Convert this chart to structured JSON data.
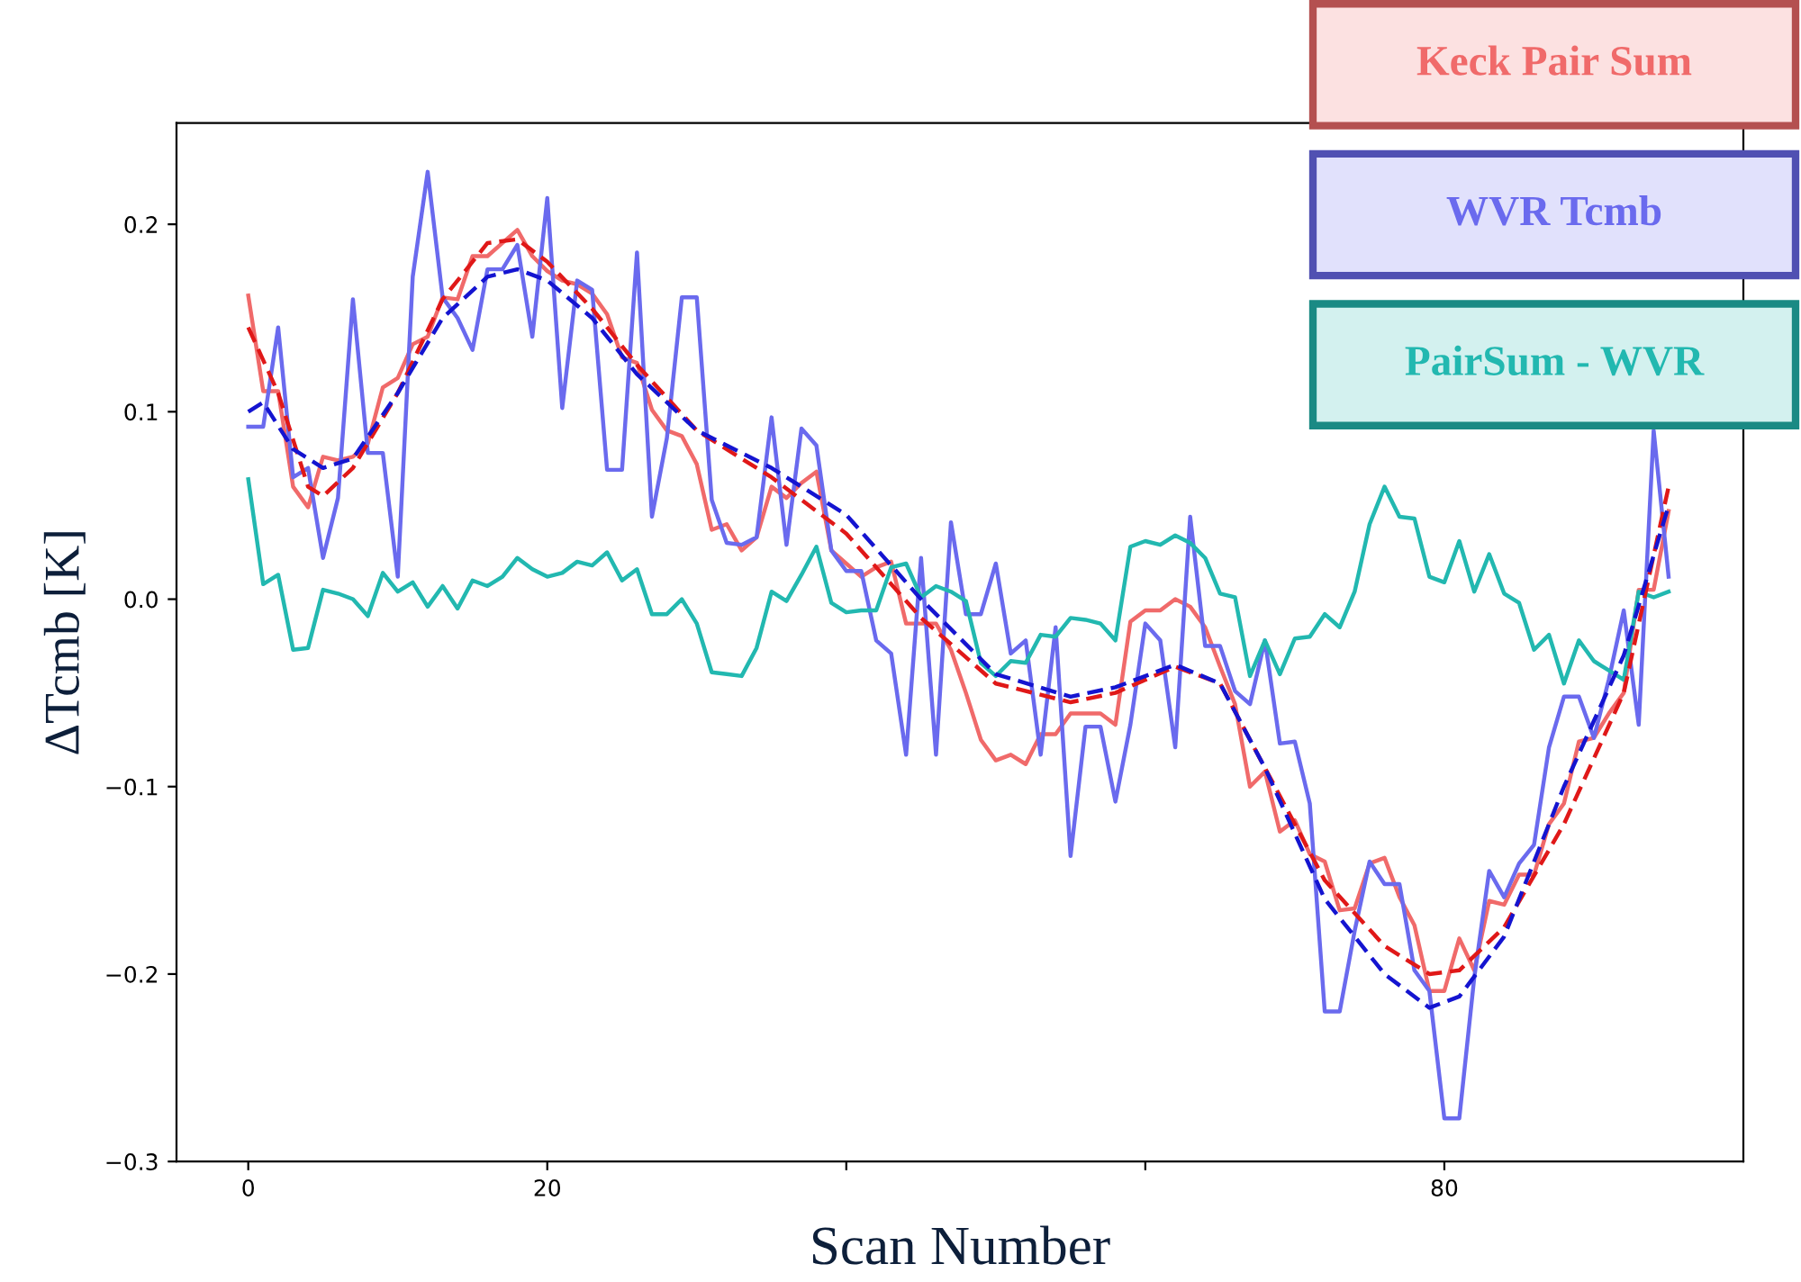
{
  "chart_data": {
    "type": "line",
    "xlabel": "Scan Number",
    "ylabel": "ΔTcmb [K]",
    "xlim": [
      -4.8,
      100
    ],
    "ylim": [
      -0.3,
      0.254
    ],
    "xticks": [
      0,
      20,
      {
        "value": 40,
        "label": null
      },
      {
        "value": 60,
        "label": null
      },
      80
    ],
    "yticks": [
      -0.3,
      -0.2,
      -0.1,
      {
        "value": 0,
        "label": "0.0"
      },
      0.1,
      0.2
    ],
    "grid": false,
    "legend": "top right",
    "marker": "none",
    "series": [
      {
        "name": "Keck Pair Sum",
        "color": "#f06a6a",
        "x": [
          0,
          1,
          2,
          3,
          4,
          5,
          6,
          7,
          8,
          9,
          10,
          11,
          12,
          13,
          14,
          15,
          16,
          17,
          18,
          19,
          20,
          21,
          22,
          23,
          24,
          25,
          26,
          27,
          28,
          29,
          30,
          31,
          32,
          33,
          34,
          35,
          36,
          37,
          38,
          39,
          40,
          41,
          42,
          43,
          44,
          45,
          46,
          47,
          48,
          49,
          50,
          51,
          52,
          53,
          54,
          55,
          56,
          57,
          58,
          59,
          60,
          61,
          62,
          63,
          64,
          65,
          66,
          67,
          68,
          69,
          70,
          71,
          72,
          73,
          74,
          75,
          76,
          77,
          78,
          79,
          80,
          81,
          82,
          83,
          84,
          85,
          86,
          87,
          88,
          89,
          90,
          91,
          92,
          93,
          94,
          95
        ],
        "values": [
          0.162,
          0.111,
          0.111,
          0.06,
          0.049,
          0.076,
          0.074,
          0.076,
          0.083,
          0.113,
          0.118,
          0.136,
          0.14,
          0.161,
          0.16,
          0.183,
          0.183,
          0.19,
          0.197,
          0.183,
          0.175,
          0.17,
          0.168,
          0.163,
          0.152,
          0.129,
          0.126,
          0.101,
          0.09,
          0.087,
          0.072,
          0.037,
          0.04,
          0.026,
          0.033,
          0.06,
          0.054,
          0.062,
          0.068,
          0.026,
          0.019,
          0.012,
          0.017,
          0.02,
          -0.013,
          -0.013,
          -0.013,
          -0.027,
          -0.05,
          -0.075,
          -0.086,
          -0.083,
          -0.088,
          -0.072,
          -0.072,
          -0.061,
          -0.061,
          -0.061,
          -0.067,
          -0.012,
          -0.006,
          -0.006,
          0.0,
          -0.004,
          -0.015,
          -0.036,
          -0.056,
          -0.1,
          -0.092,
          -0.124,
          -0.118,
          -0.136,
          -0.14,
          -0.166,
          -0.165,
          -0.141,
          -0.138,
          -0.159,
          -0.174,
          -0.209,
          -0.209,
          -0.181,
          -0.198,
          -0.161,
          -0.163,
          -0.147,
          -0.147,
          -0.12,
          -0.109,
          -0.076,
          -0.074,
          -0.061,
          -0.05,
          0.005,
          0.005,
          0.047
        ]
      },
      {
        "name": "WVR Tcmb",
        "color": "#6a6aee",
        "x": [
          0,
          1,
          2,
          3,
          4,
          5,
          6,
          7,
          8,
          9,
          10,
          11,
          12,
          13,
          14,
          15,
          16,
          17,
          18,
          19,
          20,
          21,
          22,
          23,
          24,
          25,
          26,
          27,
          28,
          29,
          30,
          31,
          32,
          33,
          34,
          35,
          36,
          37,
          38,
          39,
          40,
          41,
          42,
          43,
          44,
          45,
          46,
          47,
          48,
          49,
          50,
          51,
          52,
          53,
          54,
          55,
          56,
          57,
          58,
          59,
          60,
          61,
          62,
          63,
          64,
          65,
          66,
          67,
          68,
          69,
          70,
          71,
          72,
          73,
          74,
          75,
          76,
          77,
          78,
          79,
          80,
          81,
          82,
          83,
          84,
          85,
          86,
          87,
          88,
          89,
          90,
          91,
          92,
          93,
          94,
          95
        ],
        "values": [
          0.092,
          0.092,
          0.145,
          0.065,
          0.07,
          0.022,
          0.054,
          0.16,
          0.078,
          0.078,
          0.012,
          0.172,
          0.228,
          0.161,
          0.15,
          0.133,
          0.176,
          0.176,
          0.189,
          0.14,
          0.214,
          0.102,
          0.17,
          0.165,
          0.069,
          0.069,
          0.185,
          0.044,
          0.086,
          0.161,
          0.161,
          0.053,
          0.03,
          0.029,
          0.033,
          0.097,
          0.029,
          0.091,
          0.082,
          0.026,
          0.015,
          0.015,
          -0.022,
          -0.029,
          -0.083,
          0.022,
          -0.083,
          0.041,
          -0.008,
          -0.008,
          0.019,
          -0.029,
          -0.022,
          -0.083,
          -0.015,
          -0.137,
          -0.068,
          -0.068,
          -0.108,
          -0.067,
          -0.013,
          -0.022,
          -0.079,
          0.044,
          -0.025,
          -0.025,
          -0.049,
          -0.056,
          -0.022,
          -0.077,
          -0.076,
          -0.109,
          -0.22,
          -0.22,
          -0.177,
          -0.14,
          -0.152,
          -0.152,
          -0.198,
          -0.209,
          -0.277,
          -0.277,
          -0.202,
          -0.145,
          -0.159,
          -0.141,
          -0.131,
          -0.079,
          -0.052,
          -0.052,
          -0.074,
          -0.043,
          -0.006,
          -0.067,
          0.09,
          0.012
        ]
      },
      {
        "name": "PairSum - WVR",
        "color": "#22b8b0",
        "x": [
          0,
          1,
          2,
          3,
          4,
          5,
          6,
          7,
          8,
          9,
          10,
          11,
          12,
          13,
          14,
          15,
          16,
          17,
          18,
          19,
          20,
          21,
          22,
          23,
          24,
          25,
          26,
          27,
          28,
          29,
          30,
          31,
          32,
          33,
          34,
          35,
          36,
          37,
          38,
          39,
          40,
          41,
          42,
          43,
          44,
          45,
          46,
          47,
          48,
          49,
          50,
          51,
          52,
          53,
          54,
          55,
          56,
          57,
          58,
          59,
          60,
          61,
          62,
          63,
          64,
          65,
          66,
          67,
          68,
          69,
          70,
          71,
          72,
          73,
          74,
          75,
          76,
          77,
          78,
          79,
          80,
          81,
          82,
          83,
          84,
          85,
          86,
          87,
          88,
          89,
          90,
          91,
          92,
          93,
          94,
          95
        ],
        "values": [
          0.064,
          0.008,
          0.013,
          -0.027,
          -0.026,
          0.005,
          0.003,
          0.0,
          -0.009,
          0.014,
          0.004,
          0.009,
          -0.004,
          0.007,
          -0.005,
          0.01,
          0.007,
          0.012,
          0.022,
          0.016,
          0.012,
          0.014,
          0.02,
          0.018,
          0.025,
          0.01,
          0.016,
          -0.008,
          -0.008,
          0.0,
          -0.013,
          -0.039,
          -0.04,
          -0.041,
          -0.026,
          0.004,
          -0.001,
          0.013,
          0.028,
          -0.002,
          -0.007,
          -0.006,
          -0.006,
          0.017,
          0.019,
          0.001,
          0.007,
          0.004,
          -0.001,
          -0.034,
          -0.041,
          -0.033,
          -0.034,
          -0.019,
          -0.02,
          -0.01,
          -0.011,
          -0.013,
          -0.022,
          0.028,
          0.031,
          0.029,
          0.034,
          0.03,
          0.022,
          0.003,
          0.001,
          -0.041,
          -0.022,
          -0.04,
          -0.021,
          -0.02,
          -0.008,
          -0.015,
          0.004,
          0.04,
          0.06,
          0.044,
          0.043,
          0.012,
          0.009,
          0.031,
          0.004,
          0.024,
          0.003,
          -0.002,
          -0.027,
          -0.019,
          -0.045,
          -0.022,
          -0.033,
          -0.038,
          -0.043,
          0.004,
          0.001,
          0.004
        ]
      },
      {
        "color": "#e01818",
        "line_style": "dashed",
        "x": [
          0,
          2,
          4,
          5,
          7,
          10,
          13,
          16,
          18,
          20,
          23,
          26,
          30,
          35,
          40,
          45,
          50,
          55,
          58,
          62,
          65,
          68,
          72,
          76,
          79,
          81,
          84,
          88,
          92,
          95
        ],
        "values": [
          0.145,
          0.11,
          0.06,
          0.055,
          0.07,
          0.11,
          0.16,
          0.19,
          0.192,
          0.18,
          0.155,
          0.125,
          0.09,
          0.065,
          0.035,
          -0.01,
          -0.045,
          -0.055,
          -0.05,
          -0.036,
          -0.045,
          -0.09,
          -0.15,
          -0.185,
          -0.2,
          -0.198,
          -0.175,
          -0.12,
          -0.05,
          0.06
        ]
      },
      {
        "color": "#1414d0",
        "line_style": "dashed",
        "x": [
          0,
          1,
          3,
          5,
          7,
          10,
          13,
          16,
          18,
          20,
          23,
          26,
          30,
          35,
          40,
          45,
          50,
          55,
          58,
          62,
          65,
          68,
          72,
          76,
          79,
          81,
          84,
          88,
          92,
          95
        ],
        "values": [
          0.1,
          0.105,
          0.08,
          0.07,
          0.075,
          0.11,
          0.15,
          0.172,
          0.176,
          0.17,
          0.15,
          0.12,
          0.09,
          0.07,
          0.045,
          0.0,
          -0.04,
          -0.052,
          -0.047,
          -0.035,
          -0.045,
          -0.09,
          -0.16,
          -0.2,
          -0.218,
          -0.212,
          -0.18,
          -0.1,
          -0.03,
          0.05
        ]
      }
    ]
  }
}
